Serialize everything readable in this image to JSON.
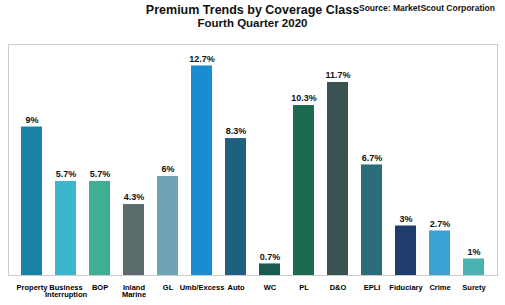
{
  "chart_data": {
    "type": "bar",
    "title": "Premium Trends by Coverage Class",
    "subtitle": "Fourth Quarter 2020",
    "source": "Source: MarketScout Corporation",
    "categories": [
      "Property",
      "Business Interruption",
      "BOP",
      "Inland Marine",
      "GL",
      "Umb/Excess",
      "Auto",
      "WC",
      "PL",
      "D&O",
      "EPLI",
      "Fiduciary",
      "Crime",
      "Surety"
    ],
    "values": [
      9,
      5.7,
      5.7,
      4.3,
      6,
      12.7,
      8.3,
      0.7,
      10.3,
      11.7,
      6.7,
      3,
      2.7,
      1
    ],
    "value_labels": [
      "9%",
      "5.7%",
      "5.7%",
      "4.3%",
      "6%",
      "12.7%",
      "8.3%",
      "0.7%",
      "10.3%",
      "11.7%",
      "6.7%",
      "3%",
      "2.7%",
      "1%"
    ],
    "colors": [
      "#1b82a6",
      "#3bb6cc",
      "#3fae92",
      "#5c6c6c",
      "#6ea4b4",
      "#1a8cd4",
      "#20607f",
      "#1b5a50",
      "#1d6b4f",
      "#3b5252",
      "#2b6c7c",
      "#203c6c",
      "#3aa2d2",
      "#4bb2b2"
    ],
    "ylim": [
      0,
      14
    ],
    "data_labels": true,
    "tick_labels": "x",
    "grid": false
  }
}
